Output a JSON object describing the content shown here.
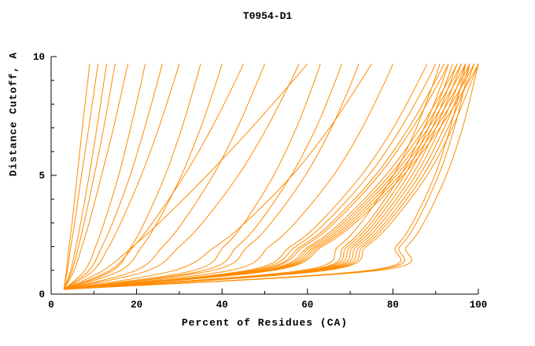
{
  "chart_data": {
    "type": "line",
    "title": "T0954-D1",
    "xlabel": "Percent of Residues (CA)",
    "ylabel": "Distance Cutoff, A",
    "xlim": [
      0,
      100
    ],
    "ylim": [
      0,
      10
    ],
    "x_ticks": [
      0,
      20,
      40,
      60,
      80,
      100
    ],
    "y_ticks": [
      0,
      5,
      10
    ],
    "x_minor_step": 10,
    "y_minor_step": 1,
    "grid": false,
    "legend": "none",
    "line_color": "#FF8C00",
    "axis_color": "#000000",
    "background_color": "#FFFFFF",
    "cutoff_values": [
      0.2,
      1,
      2,
      3,
      5,
      7,
      9,
      9.7
    ],
    "series": [
      [
        3,
        3.6,
        4.2,
        4.9,
        6.1,
        7.3,
        8.6,
        9
      ],
      [
        3,
        3.8,
        4.6,
        5.5,
        7.1,
        8.8,
        10.4,
        11
      ],
      [
        3,
        4.6,
        5.8,
        6.9,
        8.9,
        10.7,
        12.4,
        13
      ],
      [
        3,
        4.9,
        6.4,
        7.7,
        10.1,
        12.3,
        14.3,
        15
      ],
      [
        3,
        5.4,
        7.2,
        8.9,
        11.8,
        14.6,
        17.1,
        18
      ],
      [
        3,
        7.9,
        10.4,
        12.4,
        15.8,
        18.6,
        21.2,
        22
      ],
      [
        3,
        8.9,
        11.9,
        14.4,
        18.5,
        21.9,
        25,
        26
      ],
      [
        3,
        9.9,
        13.5,
        16.3,
        21.1,
        25.2,
        28.8,
        30
      ],
      [
        3,
        14.5,
        18.7,
        21.8,
        26.7,
        30.6,
        33.9,
        35
      ],
      [
        3,
        16.3,
        21.2,
        24.8,
        30.5,
        35,
        38.8,
        40
      ],
      [
        3,
        13.8,
        19.3,
        23.7,
        31.2,
        37.6,
        43.2,
        45
      ],
      [
        3,
        19.9,
        26.1,
        30.7,
        37.9,
        43.6,
        48.4,
        50
      ],
      [
        3,
        12.2,
        19.1,
        25.3,
        36.5,
        46.9,
        56.7,
        60
      ],
      [
        3,
        22.8,
        30,
        35.4,
        43.8,
        50.5,
        56.2,
        58
      ],
      [
        3,
        33.4,
        40.4,
        45.2,
        52.1,
        57.4,
        61.7,
        63
      ],
      [
        3,
        35.9,
        43.5,
        48.7,
        56.2,
        62,
        66.6,
        68
      ],
      [
        3,
        37.9,
        46,
        51.5,
        59.5,
        65.6,
        70.5,
        72
      ],
      [
        3,
        28.9,
        38.4,
        45.4,
        56.4,
        65.2,
        72.6,
        75
      ],
      [
        3,
        42,
        51,
        57.1,
        66.1,
        72.8,
        78.3,
        80
      ],
      [
        3,
        46,
        56,
        62.8,
        72.6,
        80.1,
        86.1,
        88
      ],
      [
        3,
        47,
        57.2,
        64.2,
        74.3,
        81.9,
        88.1,
        90
      ],
      [
        3,
        58.8,
        67.2,
        72.5,
        80.1,
        85.5,
        89.7,
        91
      ],
      [
        3,
        48,
        58.4,
        65.6,
        75.9,
        83.7,
        90,
        92
      ],
      [
        3,
        60.1,
        68.6,
        74.1,
        81.8,
        87.3,
        91.7,
        93
      ],
      [
        3,
        48.5,
        59.1,
        66.3,
        76.7,
        84.6,
        91,
        93
      ],
      [
        3,
        60.7,
        69.3,
        74.9,
        82.7,
        88.3,
        92.6,
        94
      ],
      [
        3,
        49.6,
        60.3,
        67.7,
        78.3,
        86.4,
        93,
        95
      ],
      [
        3,
        61.3,
        70.1,
        75.7,
        83.6,
        89.2,
        93.6,
        95
      ],
      [
        3,
        50.1,
        60.9,
        68.4,
        79.2,
        87.4,
        94,
        96
      ],
      [
        3,
        62,
        70.8,
        76.5,
        84.5,
        90.1,
        94.6,
        96
      ],
      [
        3,
        50.6,
        61.6,
        69.1,
        80,
        88.3,
        94.9,
        97
      ],
      [
        3,
        62.6,
        71.5,
        77.3,
        85.3,
        91.1,
        95.6,
        97
      ],
      [
        3,
        74.5,
        80.7,
        84.6,
        89.8,
        93.4,
        96.2,
        97
      ],
      [
        3,
        51.1,
        62.2,
        69.8,
        80.8,
        89.2,
        95.9,
        98
      ],
      [
        3,
        63.2,
        72.3,
        78.1,
        86.2,
        92,
        96.6,
        98
      ],
      [
        3,
        75.3,
        81.6,
        85.5,
        90.7,
        94.4,
        97.1,
        98
      ],
      [
        3,
        51.6,
        62.8,
        70.5,
        81.6,
        90.1,
        96.9,
        99
      ],
      [
        3,
        63.9,
        73,
        78.8,
        87.1,
        92.9,
        97.6,
        99
      ],
      [
        3,
        52.1,
        63.4,
        71.2,
        82.4,
        91,
        97.9,
        100
      ],
      [
        3,
        64.5,
        73.7,
        79.6,
        88,
        93.9,
        98.5,
        100
      ],
      [
        3,
        76.8,
        83.2,
        87.2,
        92.5,
        96.3,
        99.1,
        100
      ]
    ]
  }
}
